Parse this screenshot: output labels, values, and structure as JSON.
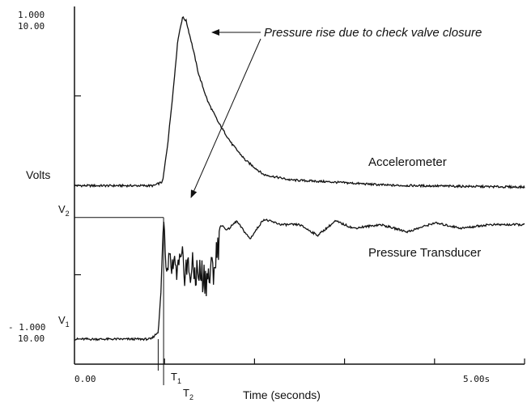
{
  "chart_data": {
    "type": "line",
    "title": "",
    "xlabel": "Time (seconds)",
    "ylabel": "Volts",
    "x_start_label": "0.00",
    "x_end_label": "5.00s",
    "x_range": [
      0,
      5
    ],
    "y_top_labels": [
      "1.000",
      "10.00"
    ],
    "y_bottom_labels": [
      "- 1.000",
      "10.00"
    ],
    "y_range": [
      -1,
      1
    ],
    "grid": false,
    "markers": {
      "t1": "T",
      "t1_sub": "1",
      "t2": "T",
      "t2_sub": "2",
      "v1": "V",
      "v1_sub": "1",
      "v2": "V",
      "v2_sub": "2"
    },
    "annotation": "Pressure rise due to check valve closure",
    "series": [
      {
        "name": "Accelerometer",
        "x": [
          0,
          0.88,
          0.98,
          1.04,
          1.1,
          1.15,
          1.2,
          1.24,
          1.3,
          1.38,
          1.48,
          1.6,
          1.75,
          1.9,
          2.1,
          2.4,
          2.8,
          3.5,
          4.2,
          5.0
        ],
        "y": [
          -0.002,
          -0.002,
          0.02,
          0.25,
          0.55,
          0.82,
          0.94,
          0.92,
          0.8,
          0.62,
          0.47,
          0.35,
          0.23,
          0.14,
          0.06,
          0.03,
          0.02,
          0.0,
          -0.005,
          -0.01
        ]
      },
      {
        "name": "Pressure Transducer",
        "x": [
          0,
          0.85,
          0.93,
          0.96,
          0.99,
          1.02,
          1.06,
          1.12,
          1.2,
          1.3,
          1.4,
          1.5,
          1.58,
          1.62,
          1.7,
          1.8,
          1.95,
          2.1,
          2.3,
          2.5,
          2.7,
          2.9,
          3.1,
          3.4,
          3.7,
          4.0,
          4.3,
          4.6,
          5.0
        ],
        "y": [
          -0.86,
          -0.86,
          -0.82,
          -0.6,
          -0.18,
          -0.55,
          -0.45,
          -0.5,
          -0.45,
          -0.48,
          -0.5,
          -0.52,
          -0.4,
          -0.22,
          -0.25,
          -0.2,
          -0.3,
          -0.19,
          -0.22,
          -0.22,
          -0.28,
          -0.2,
          -0.24,
          -0.22,
          -0.26,
          -0.21,
          -0.24,
          -0.22,
          -0.22
        ]
      }
    ]
  }
}
